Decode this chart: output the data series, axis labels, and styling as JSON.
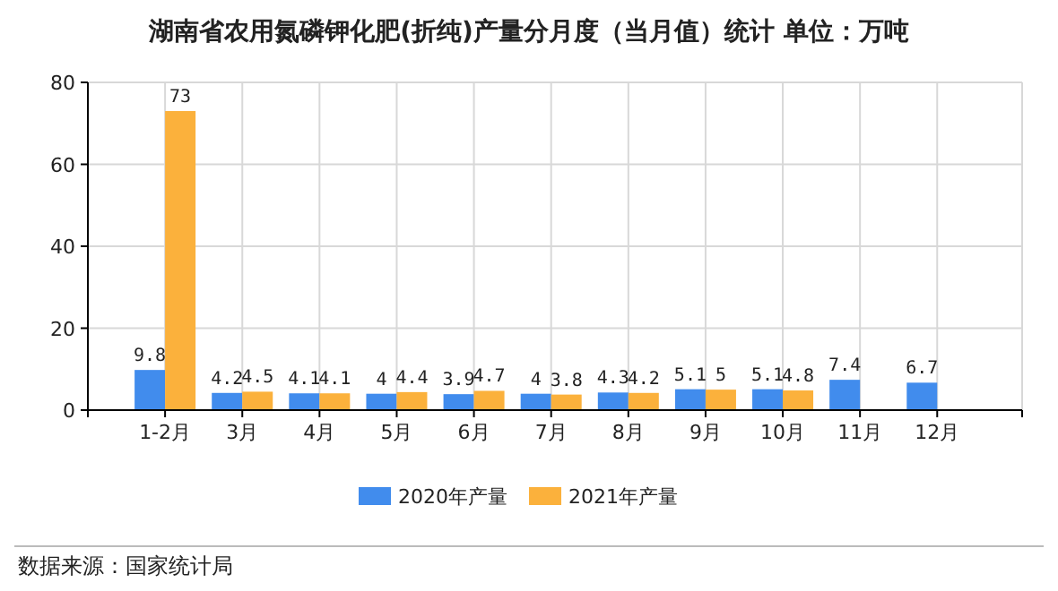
{
  "chart_data": {
    "type": "bar",
    "title": "湖南省农用氮磷钾化肥(折纯)产量分月度（当月值）统计 单位：万吨",
    "categories": [
      "1-2月",
      "3月",
      "4月",
      "5月",
      "6月",
      "7月",
      "8月",
      "9月",
      "10月",
      "11月",
      "12月"
    ],
    "series": [
      {
        "name": "2020年产量",
        "color": "#418ced",
        "values": [
          9.8,
          4.2,
          4.1,
          4,
          3.9,
          4,
          4.3,
          5.1,
          5.1,
          7.4,
          6.7
        ]
      },
      {
        "name": "2021年产量",
        "color": "#fbb13c",
        "values": [
          73,
          4.5,
          4.1,
          4.4,
          4.7,
          3.8,
          4.2,
          5,
          4.8,
          null,
          null
        ]
      }
    ],
    "ylim": [
      0,
      80
    ],
    "yticks": [
      0,
      20,
      40,
      60,
      80
    ],
    "grid": true,
    "legend": "bottom",
    "data_labels": true,
    "annotations": [
      "数据来源：国家统计局"
    ]
  }
}
